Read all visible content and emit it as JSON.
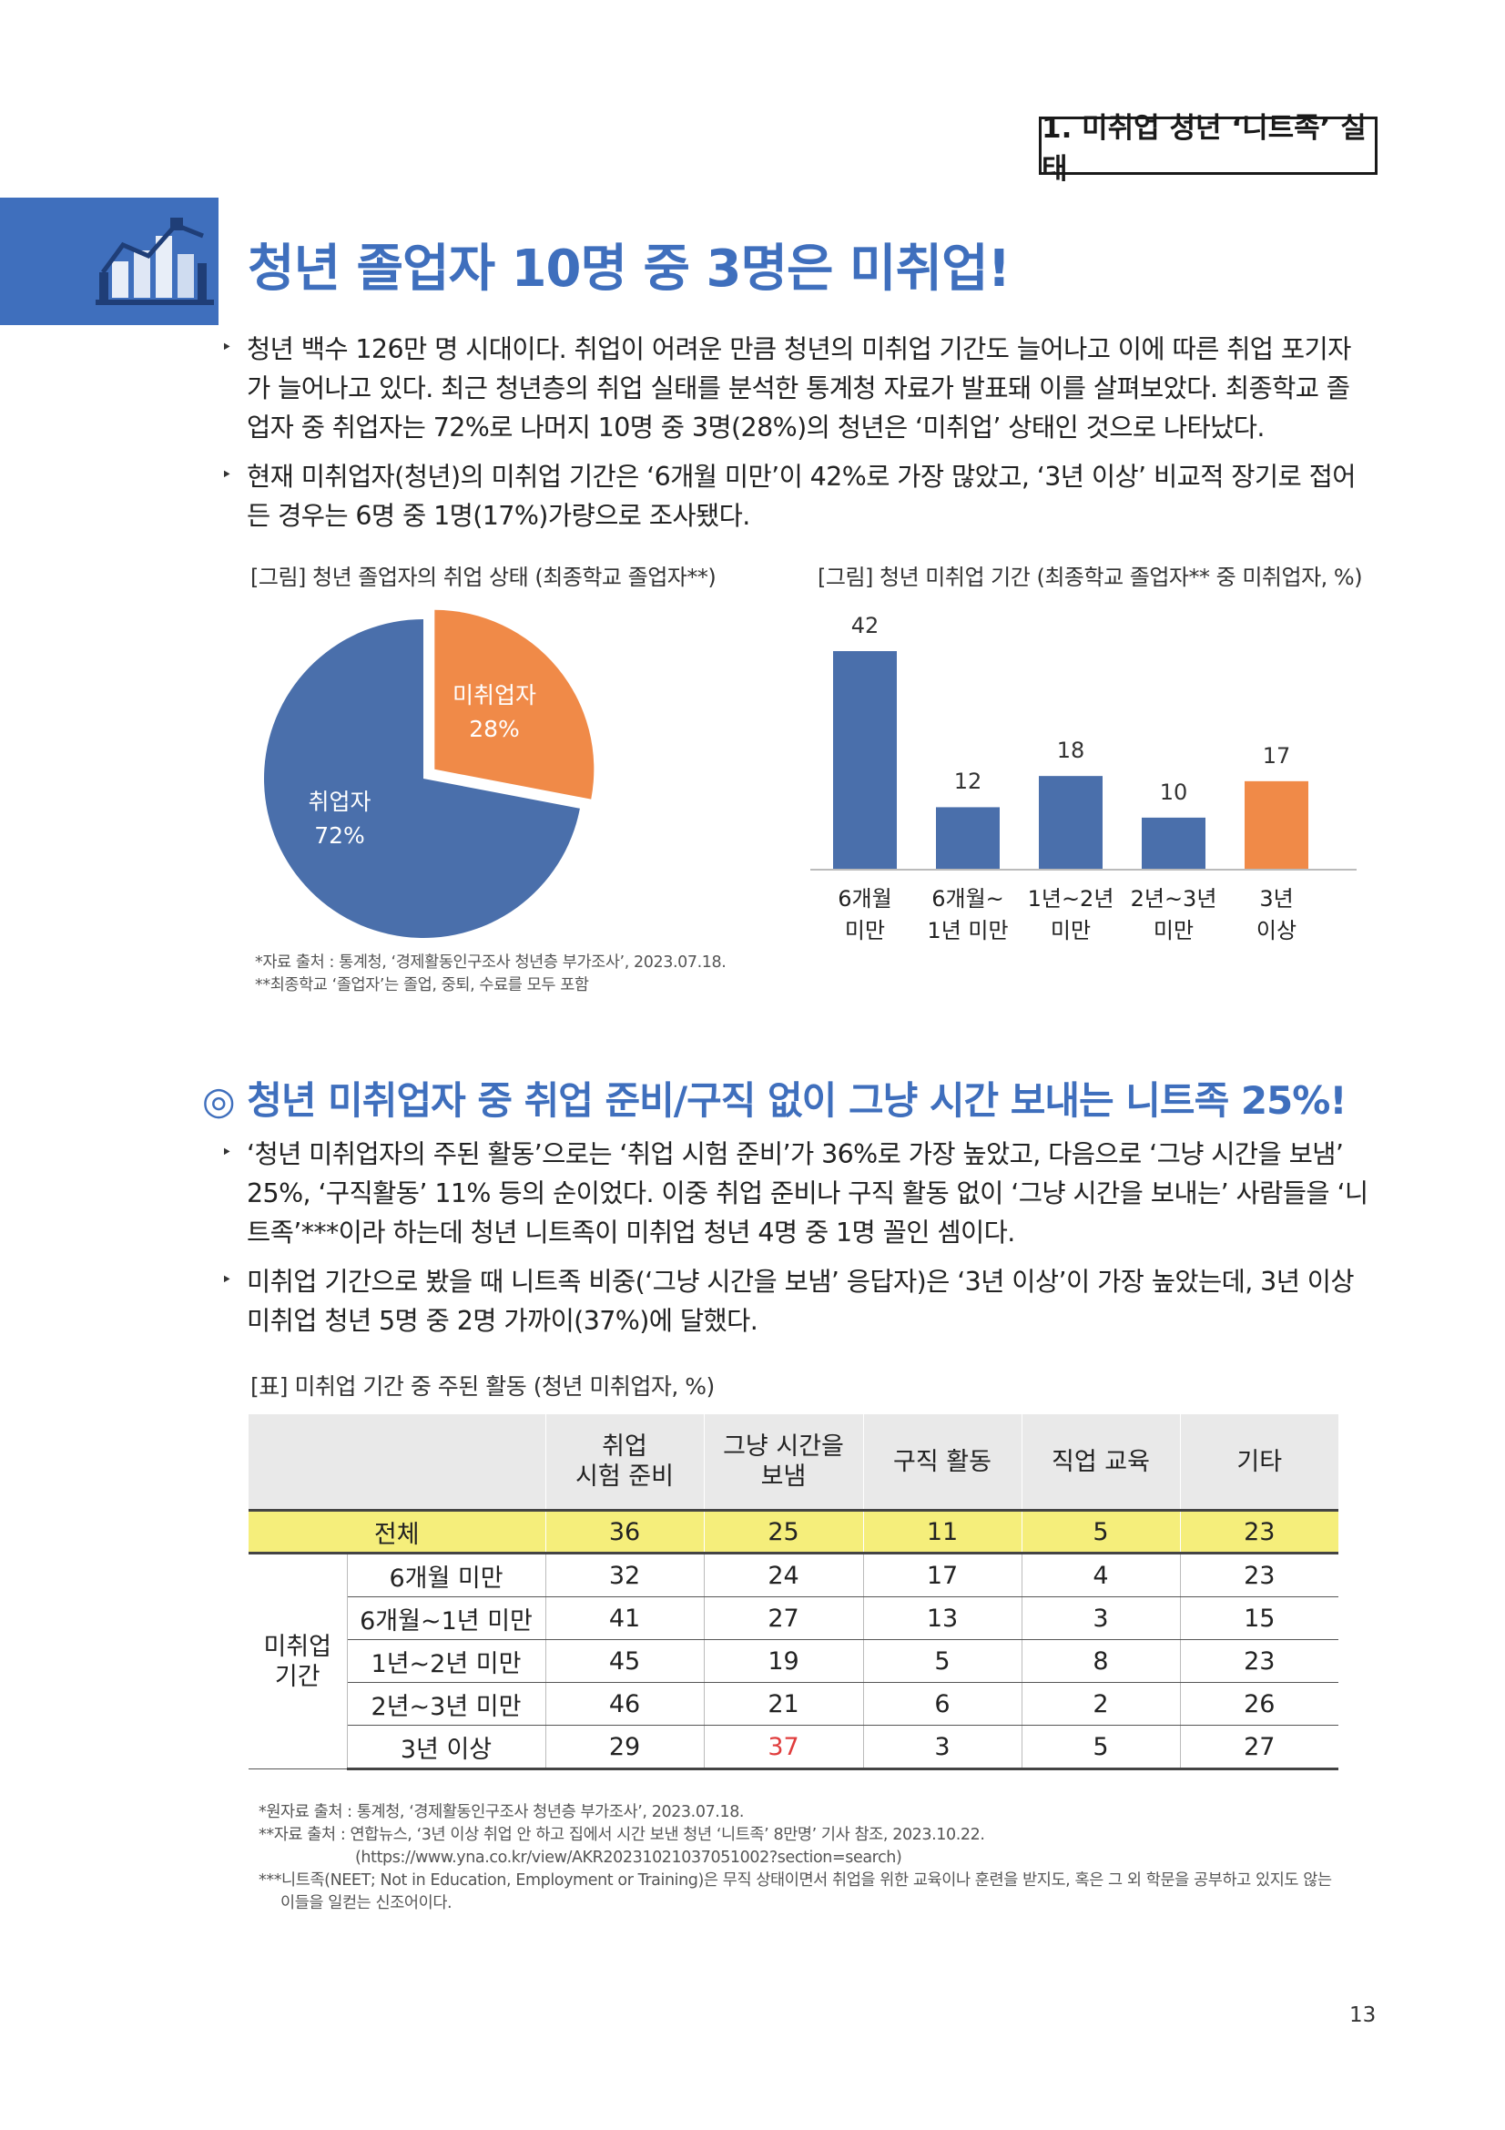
{
  "section_tag": "1. 미취업 청년 ‘니트족’ 실태",
  "hero_title": "청년 졸업자 10명 중 3명은 미취업!",
  "bullets1": [
    {
      "lines": [
        "청년 백수 126만 명 시대이다. 취업이 어려운 만큼 청년의 미취업 기간도 늘어나고 이에 따른 취업 포기자",
        "가 늘어나고 있다. 최근 청년층의 취업 실태를 분석한 통계청 자료가 발표돼 이를 살펴보았다. 최종학교 졸",
        "업자 중 취업자는 72%로 나머지 10명 중 3명(28%)의 청년은 ‘미취업’ 상태인 것으로 나타났다."
      ]
    },
    {
      "lines": [
        "현재 미취업자(청년)의 미취업 기간은 ‘6개월 미만’이 42%로 가장 많았고, ‘3년 이상’ 비교적 장기로 접어",
        "든 경우는 6명 중 1명(17%)가량으로 조사됐다."
      ]
    }
  ],
  "bullet_mark": "‣",
  "pie_caption": "[그림] 청년 졸업자의 취업 상태 (최종학교 졸업자**)",
  "bar_caption": "[그림] 청년 미취업 기간 (최종학교 졸업자** 중 미취업자, %)",
  "chart_data": [
    {
      "type": "pie",
      "labels": [
        "미취업자",
        "취업자"
      ],
      "values": [
        28,
        72
      ],
      "value_labels": [
        "28%",
        "72%"
      ],
      "colors": [
        "#f08a48",
        "#4a6fab"
      ],
      "exploded": "미취업자"
    },
    {
      "type": "bar",
      "categories": [
        [
          "6개월",
          "미만"
        ],
        [
          "6개월~",
          "1년 미만"
        ],
        [
          "1년~2년",
          "미만"
        ],
        [
          "2년~3년",
          "미만"
        ],
        [
          "3년",
          "이상"
        ]
      ],
      "values": [
        42,
        12,
        18,
        10,
        17
      ],
      "value_labels": [
        "42",
        "12",
        "18",
        "10",
        "17"
      ],
      "colors": [
        "#4a6fab",
        "#4a6fab",
        "#4a6fab",
        "#4a6fab",
        "#f08a48"
      ],
      "ylim": [
        0,
        42
      ]
    }
  ],
  "fig_footnotes": [
    "*자료 출처 : 통계청, ‘경제활동인구조사 청년층 부가조사’, 2023.07.18.",
    "**최종학교 ‘졸업자’는 졸업, 중퇴, 수료를 모두 포함"
  ],
  "sec2_title": "◎ 청년 미취업자 중 취업 준비/구직 없이 그냥 시간 보내는 니트족 25%!",
  "bullets2": [
    {
      "lines": [
        "‘청년 미취업자의 주된 활동’으로는 ‘취업 시험 준비’가 36%로 가장 높았고, 다음으로 ‘그냥 시간을 보냄’",
        "25%, ‘구직활동’ 11% 등의 순이었다. 이중 취업 준비나 구직 활동 없이 ‘그냥 시간을 보내는’ 사람들을 ‘니",
        "트족’***이라 하는데 청년 니트족이 미취업 청년 4명 중 1명 꼴인 셈이다."
      ]
    },
    {
      "lines": [
        "미취업 기간으로 봤을 때 니트족 비중(‘그냥 시간을 보냄’ 응답자)은 ‘3년 이상’이 가장 높았는데, 3년 이상",
        "미취업 청년 5명 중 2명 가까이(37%)에 달했다."
      ]
    }
  ],
  "table_caption": "[표] 미취업 기간 중 주된 활동 (청년 미취업자, %)",
  "table": {
    "headers": [
      [
        "취업",
        "시험 준비"
      ],
      [
        "그냥 시간을",
        "보냄"
      ],
      [
        "구직 활동"
      ],
      [
        "직업 교육"
      ],
      [
        "기타"
      ]
    ],
    "total_label": "전체",
    "total": [
      "36",
      "25",
      "11",
      "5",
      "23"
    ],
    "group_label": [
      "미취업",
      "기간"
    ],
    "rows": [
      {
        "label": "6개월 미만",
        "values": [
          "32",
          "24",
          "17",
          "4",
          "23"
        ]
      },
      {
        "label": "6개월~1년 미만",
        "values": [
          "41",
          "27",
          "13",
          "3",
          "15"
        ]
      },
      {
        "label": "1년~2년 미만",
        "values": [
          "45",
          "19",
          "5",
          "8",
          "23"
        ]
      },
      {
        "label": "2년~3년 미만",
        "values": [
          "46",
          "21",
          "6",
          "2",
          "26"
        ]
      },
      {
        "label": "3년 이상",
        "values": [
          "29",
          "37",
          "3",
          "5",
          "27"
        ]
      }
    ],
    "highlight_color": "#e03d3d"
  },
  "table_footnotes": [
    "*원자료 출처 : 통계청, ‘경제활동인구조사 청년층 부가조사’, 2023.07.18.",
    "**자료 출처 : 연합뉴스, ‘3년 이상 취업 안 하고 집에서 시간 보낸 청년 ‘니트족’ 8만명’ 기사 참조, 2023.10.22.",
    "(https://www.yna.co.kr/view/AKR20231021037051002?section=search)",
    "***니트족(NEET; Not in Education, Employment or Training)은 무직 상태이면서 취업을 위한 교육이나 훈련을 받지도, 혹은 그 외 학문을 공부하고 있지도 않는",
    "이들을 일컫는 신조어이다."
  ],
  "page_number": "13",
  "colors": {
    "accent": "#3f6fbd",
    "bar_blue": "#4a6fab",
    "orange": "#f08a48",
    "table_total": "#f5ee7b",
    "table_header": "#e9e9e9"
  }
}
